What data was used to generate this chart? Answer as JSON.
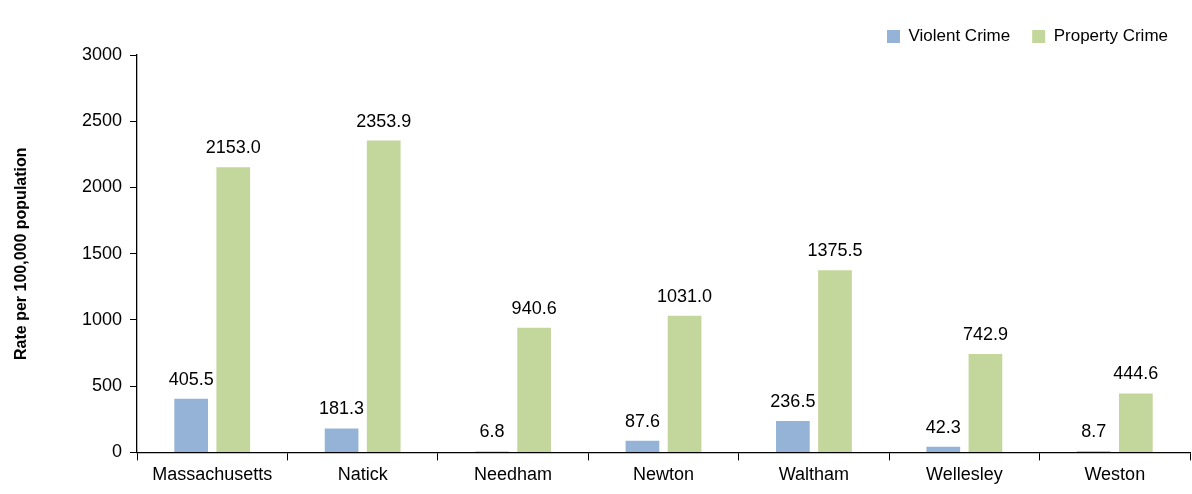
{
  "chart_data": {
    "type": "bar",
    "ylabel": "Rate per 100,000 population",
    "categories": [
      "Massachusetts",
      "Natick",
      "Needham",
      "Newton",
      "Waltham",
      "Wellesley",
      "Weston"
    ],
    "series": [
      {
        "name": "Violent Crime",
        "color": "#95b3d7",
        "values": [
          405.5,
          181.3,
          6.8,
          87.6,
          236.5,
          42.3,
          8.7
        ],
        "value_labels": [
          "405.5",
          "181.3",
          "6.8",
          "87.6",
          "236.5",
          "42.3",
          "8.7"
        ]
      },
      {
        "name": "Property Crime",
        "color": "#c3d69b",
        "values": [
          2153.0,
          2353.9,
          940.6,
          1031.0,
          1375.5,
          742.9,
          444.6
        ],
        "value_labels": [
          "2153.0",
          "2353.9",
          "940.6",
          "1031.0",
          "1375.5",
          "742.9",
          "444.6"
        ]
      }
    ],
    "ylim": [
      0,
      3000
    ],
    "yticks": [
      0,
      500,
      1000,
      1500,
      2000,
      2500,
      3000
    ],
    "legend": "top right"
  }
}
